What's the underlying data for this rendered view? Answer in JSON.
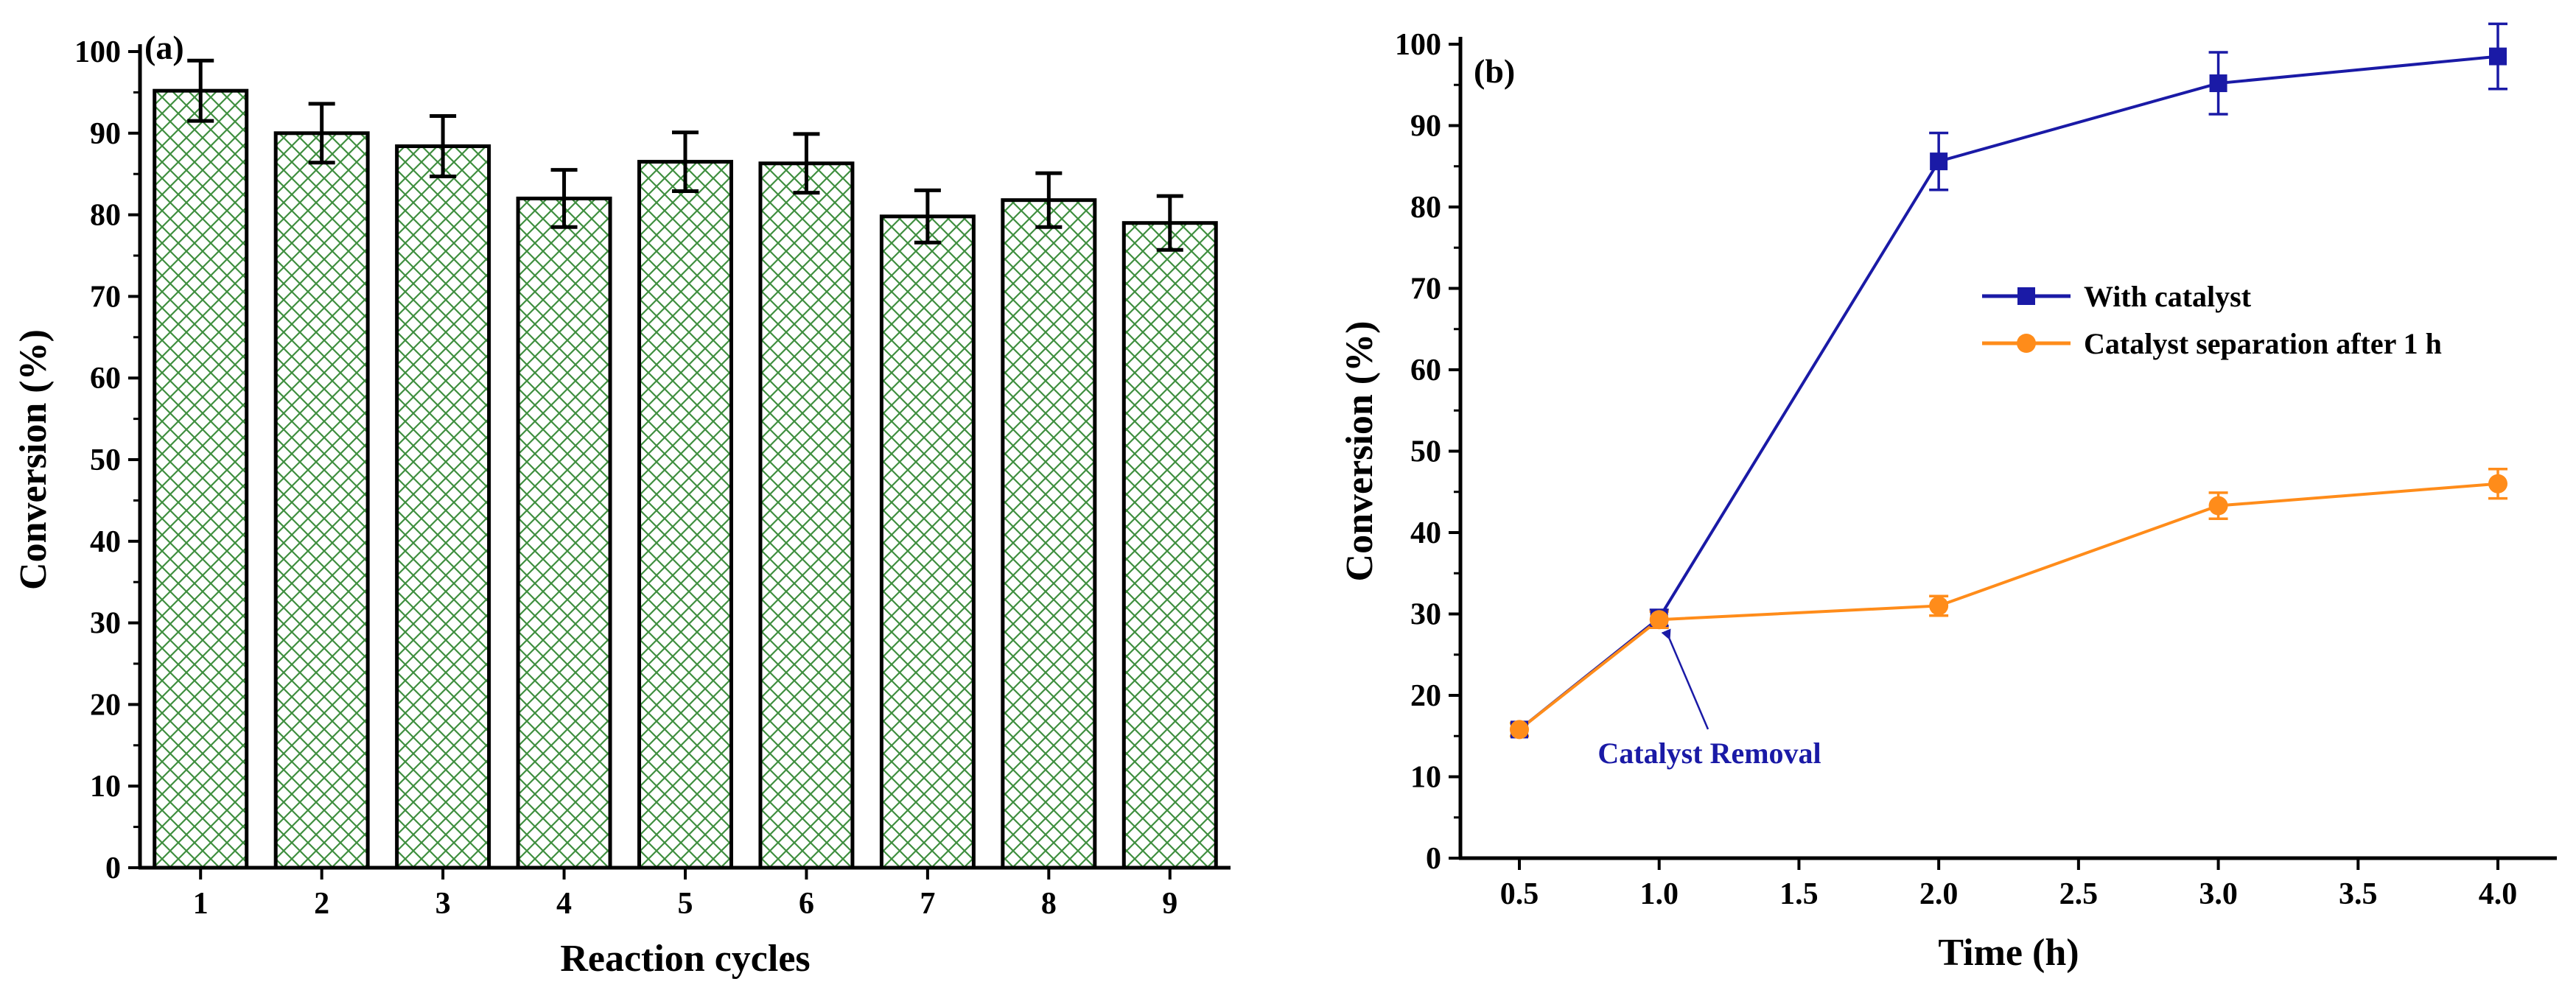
{
  "chart_data": [
    {
      "type": "bar",
      "panel_label": "(a)",
      "title": "",
      "xlabel": "Reaction cycles",
      "ylabel": "Conversion (%)",
      "ylim": [
        0,
        100
      ],
      "yticks": [
        "0",
        "10",
        "20",
        "30",
        "40",
        "50",
        "60",
        "70",
        "80",
        "90",
        "100"
      ],
      "categories": [
        "1",
        "2",
        "3",
        "4",
        "5",
        "6",
        "7",
        "8",
        "9"
      ],
      "values": [
        95.2,
        90.0,
        88.4,
        82.0,
        86.5,
        86.3,
        79.8,
        81.8,
        79.0
      ],
      "errors": [
        3.7,
        3.6,
        3.7,
        3.5,
        3.6,
        3.6,
        3.2,
        3.3,
        3.3
      ],
      "bar_fill": "#ffffff",
      "hatch_color": "#3f8f3f",
      "grid": false
    },
    {
      "type": "line",
      "panel_label": "(b)",
      "title": "",
      "xlabel": "Time (h)",
      "ylabel": "Conversion (%)",
      "xlim": [
        0.5,
        4.0
      ],
      "ylim": [
        0,
        100
      ],
      "xticks": [
        "0.5",
        "1.0",
        "1.5",
        "2.0",
        "2.5",
        "3.0",
        "3.5",
        "4.0"
      ],
      "yticks": [
        "0",
        "10",
        "20",
        "30",
        "40",
        "50",
        "60",
        "70",
        "80",
        "90",
        "100"
      ],
      "x_categories": [
        "0.5",
        "1.0",
        "2.0",
        "3.0",
        "4.0"
      ],
      "series": [
        {
          "name": "With catalyst",
          "marker": "square",
          "color": "#1a1aa6",
          "x": [
            "0.5",
            "1.0",
            "2.0",
            "3.0",
            "4.0"
          ],
          "values": [
            15.8,
            29.5,
            85.6,
            95.2,
            98.5
          ],
          "errors": [
            0.8,
            1.0,
            3.5,
            3.8,
            4.0
          ]
        },
        {
          "name": "Catalyst separation after 1 h",
          "marker": "circle",
          "color": "#ff8c1a",
          "x": [
            "0.5",
            "1.0",
            "2.0",
            "3.0",
            "4.0"
          ],
          "values": [
            15.8,
            29.3,
            31.0,
            43.3,
            46.0
          ],
          "errors": [
            0.8,
            1.0,
            1.2,
            1.6,
            1.8
          ]
        }
      ],
      "annotation": {
        "text": "Catalyst Removal",
        "color": "#1a1aa6",
        "points_to_x": "1.0"
      },
      "legend_position": "center-right",
      "grid": false
    }
  ]
}
